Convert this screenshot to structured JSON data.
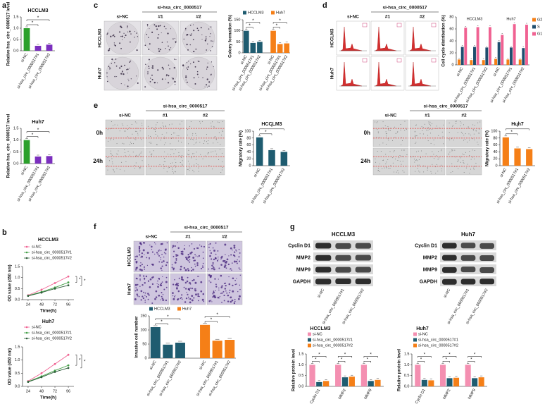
{
  "panel_letters": [
    "a",
    "b",
    "c",
    "d",
    "e",
    "f",
    "g"
  ],
  "image_panels": {
    "c": {
      "group": "si-hsa_circ_0000517",
      "columns": [
        "si-NC",
        "#1",
        "#2"
      ],
      "rows": [
        "HCCLM3",
        "Huh7"
      ]
    },
    "d": {
      "group": "si-hsa_circ_0000517",
      "columns": [
        "si-NC",
        "#1",
        "#2"
      ],
      "rows": [
        "HCCLM3",
        "Huh7"
      ]
    },
    "e1": {
      "group": "si-hsa_circ_0000517",
      "columns": [
        "si-NC",
        "#1",
        "#2"
      ],
      "rows": [
        "0h",
        "24h"
      ]
    },
    "e2": {
      "group": "si-hsa_circ_0000517",
      "columns": [
        "si-NC",
        "#1",
        "#2"
      ],
      "rows": [
        "0h",
        "24h"
      ]
    },
    "f": {
      "group": "si-hsa_circ_0000517",
      "columns": [
        "si-NC",
        "#1",
        "#2"
      ],
      "rows": [
        "HCCLM3",
        "Huh7"
      ]
    }
  },
  "blots": [
    {
      "title": "HCCLM3",
      "proteins": [
        "Cyclin D1",
        "MMP2",
        "MMP9",
        "GAPDH"
      ],
      "lanes": [
        "si-NC",
        "si-hsa_circ_0000517#1",
        "si-hsa_circ_0000517#2"
      ]
    },
    {
      "title": "Huh7",
      "proteins": [
        "Cyclin D1",
        "MMP2",
        "MMP9",
        "GAPDH"
      ],
      "lanes": [
        "si-NC",
        "si-hsa_circ_0000517#1",
        "si-hsa_circ_0000517#2"
      ]
    }
  ],
  "chart_data": [
    {
      "type": "bar",
      "title": "HCCLM3",
      "ylabel": "Relative hsa_circ_0000517 level",
      "categories": [
        "si-NC",
        "si-hsa_circ_0000517#1",
        "si-hsa_circ_0000517#2"
      ],
      "values": [
        1.0,
        0.22,
        0.27
      ],
      "colors": [
        "#2ca02c",
        "#7b2fbe",
        "#7b2fbe"
      ],
      "ylim": [
        0,
        1.5
      ],
      "yticks": [
        {
          "value": 0,
          "label": "0.0"
        },
        {
          "value": 0.5,
          "label": "0.5"
        },
        {
          "value": 1,
          "label": "1.0"
        },
        {
          "value": 1.5,
          "label": "1.5"
        }
      ],
      "sig_label": "*"
    },
    {
      "type": "bar",
      "title": "Huh7",
      "ylabel": "Relative hsa_circ_0000517 level",
      "categories": [
        "si-NC",
        "si-hsa_circ_0000517#1",
        "si-hsa_circ_0000517#2"
      ],
      "values": [
        1.0,
        0.3,
        0.32
      ],
      "colors": [
        "#2ca02c",
        "#7b2fbe",
        "#7b2fbe"
      ],
      "ylim": [
        0,
        1.5
      ],
      "yticks": [
        {
          "value": 0,
          "label": "0.0"
        },
        {
          "value": 0.5,
          "label": "0.5"
        },
        {
          "value": 1,
          "label": "1.0"
        },
        {
          "value": 1.5,
          "label": "1.5"
        }
      ],
      "sig_label": "*"
    },
    {
      "type": "line",
      "title": "HCCLM3",
      "xlabel": "Time(h)",
      "ylabel": "OD value (450 nm)",
      "x": [
        24,
        48,
        72,
        96
      ],
      "xlim": [
        14,
        106
      ],
      "xticks": [
        24,
        48,
        72,
        96
      ],
      "ylim": [
        0,
        1.5
      ],
      "yticks": [
        {
          "value": 0,
          "label": "0.0"
        },
        {
          "value": 0.5,
          "label": "0.5"
        },
        {
          "value": 1,
          "label": "1.0"
        },
        {
          "value": 1.5,
          "label": "1.5"
        }
      ],
      "legend": "top-left",
      "sig_label": "*",
      "series": [
        {
          "name": "si-NC",
          "color": "#f06292",
          "values": [
            0.2,
            0.45,
            0.75,
            1.05
          ]
        },
        {
          "name": "si-hsa_circ_0000517#1",
          "color": "#43a047",
          "values": [
            0.18,
            0.35,
            0.55,
            0.78
          ]
        },
        {
          "name": "si-hsa_circ_0000517#2",
          "color": "#2e5d3a",
          "values": [
            0.17,
            0.32,
            0.5,
            0.65
          ]
        }
      ]
    },
    {
      "type": "line",
      "title": "Huh7",
      "xlabel": "Time(h)",
      "ylabel": "OD value (450 nm)",
      "x": [
        24,
        48,
        72,
        96
      ],
      "xlim": [
        14,
        106
      ],
      "xticks": [
        24,
        48,
        72,
        96
      ],
      "ylim": [
        0,
        1.5
      ],
      "yticks": [
        {
          "value": 0,
          "label": "0.0"
        },
        {
          "value": 0.5,
          "label": "0.5"
        },
        {
          "value": 1,
          "label": "1.0"
        },
        {
          "value": 1.5,
          "label": "1.5"
        }
      ],
      "legend": "top-left",
      "sig_label": "*",
      "series": [
        {
          "name": "si-NC",
          "color": "#f06292",
          "values": [
            0.2,
            0.5,
            0.85,
            1.2
          ]
        },
        {
          "name": "si-hsa_circ_0000517#1",
          "color": "#43a047",
          "values": [
            0.18,
            0.38,
            0.6,
            0.8
          ]
        },
        {
          "name": "si-hsa_circ_0000517#2",
          "color": "#2e5d3a",
          "values": [
            0.17,
            0.35,
            0.55,
            0.7
          ]
        }
      ]
    },
    {
      "type": "bar",
      "bar_layout": "sequential",
      "ylabel": "Colony formation (%)",
      "categories": [
        "si-NC",
        "si-hsa_circ_0000517#1",
        "si-hsa_circ_0000517#2"
      ],
      "ylim": [
        0,
        150
      ],
      "yticks": [
        0,
        50,
        100,
        150
      ],
      "legend": "top",
      "sig_label": "*",
      "series": [
        {
          "name": "HCCLM3",
          "color": "#1f5c70",
          "values": [
            100,
            45,
            50
          ]
        },
        {
          "name": "Huh7",
          "color": "#f57f17",
          "values": [
            100,
            40,
            43
          ]
        }
      ]
    },
    {
      "type": "bar",
      "bar_layout": "clustered",
      "ylabel": "Cell cycle distribution (%)",
      "categories": [
        "si-NC",
        "si-hsa_circ_0000517#1",
        "si-hsa_circ_0000517#2",
        "si-NC",
        "si-hsa_circ_0000517#1",
        "si-hsa_circ_0000517#2"
      ],
      "group_labels": [
        "HCCLM3",
        "Huh7"
      ],
      "ylim": [
        0,
        80
      ],
      "yticks": [
        0,
        20,
        40,
        60,
        80
      ],
      "legend": "right",
      "series": [
        {
          "name": "G2",
          "color": "#f57f17",
          "values": [
            9,
            8,
            8,
            10,
            9,
            9
          ]
        },
        {
          "name": "S",
          "color": "#1f4e6e",
          "values": [
            30,
            30,
            29,
            38,
            29,
            28
          ]
        },
        {
          "name": "G1",
          "color": "#f06292",
          "values": [
            62,
            63,
            63,
            50,
            68,
            67
          ]
        }
      ]
    },
    {
      "type": "bar",
      "title": "HCCLM3",
      "ylabel": "Migratory rate (%)",
      "categories": [
        "si-NC",
        "si-hsa_circ_0000517#1",
        "si-hsa_circ_0000517#2"
      ],
      "values": [
        82,
        45,
        40
      ],
      "color": "#1f5c70",
      "ylim": [
        0,
        100
      ],
      "yticks": [
        0,
        20,
        40,
        60,
        80,
        100
      ],
      "sig_label": "*"
    },
    {
      "type": "bar",
      "title": "Huh7",
      "ylabel": "Migratory rate (%)",
      "categories": [
        "si-NC",
        "si-hsa_circ_0000517#1",
        "si-hsa_circ_0000517#2"
      ],
      "values": [
        82,
        50,
        48
      ],
      "color": "#f57f17",
      "ylim": [
        0,
        100
      ],
      "yticks": [
        0,
        20,
        40,
        60,
        80,
        100
      ],
      "sig_label": "*"
    },
    {
      "type": "bar",
      "bar_layout": "sequential",
      "ylabel": "Invasive cell number",
      "categories": [
        "si-NC",
        "si-hsa_circ_0000517#1",
        "si-hsa_circ_0000517#2"
      ],
      "ylim": [
        0,
        150
      ],
      "yticks": [
        0,
        50,
        100,
        150
      ],
      "legend": "top",
      "sig_label": "*",
      "series": [
        {
          "name": "HCCLM3",
          "color": "#1f5c70",
          "values": [
            110,
            48,
            55
          ]
        },
        {
          "name": "Huh7",
          "color": "#f57f17",
          "values": [
            118,
            62,
            65
          ]
        }
      ]
    },
    {
      "type": "bar",
      "bar_layout": "clustered",
      "title": "HCCLM3",
      "ylabel": "Relative protein level",
      "categories": [
        "Cyclin D1",
        "MMP2",
        "MMP9"
      ],
      "ylim": [
        0,
        1.5
      ],
      "yticks": [
        {
          "value": 0,
          "label": "0.0"
        },
        {
          "value": 0.5,
          "label": "0.5"
        },
        {
          "value": 1,
          "label": "1.0"
        },
        {
          "value": 1.5,
          "label": "1.5"
        }
      ],
      "legend": "top-left",
      "sig_label": "*",
      "series": [
        {
          "name": "si-NC",
          "color": "#f48fb1",
          "values": [
            1.0,
            1.0,
            1.0
          ]
        },
        {
          "name": "si-hsa_circ_0000517#1",
          "color": "#1f5c70",
          "values": [
            0.2,
            0.42,
            0.25
          ]
        },
        {
          "name": "si-hsa_circ_0000517#2",
          "color": "#f57f17",
          "values": [
            0.25,
            0.45,
            0.3
          ]
        }
      ]
    },
    {
      "type": "bar",
      "bar_layout": "clustered",
      "title": "Huh7",
      "ylabel": "Relative protein level",
      "categories": [
        "Cyclin D1",
        "MMP2",
        "MMP9"
      ],
      "ylim": [
        0,
        1.5
      ],
      "yticks": [
        {
          "value": 0,
          "label": "0.0"
        },
        {
          "value": 0.5,
          "label": "0.5"
        },
        {
          "value": 1,
          "label": "1.0"
        },
        {
          "value": 1.5,
          "label": "1.5"
        }
      ],
      "legend": "top-left",
      "sig_label": "*",
      "series": [
        {
          "name": "si-NC",
          "color": "#f48fb1",
          "values": [
            1.0,
            1.0,
            1.0
          ]
        },
        {
          "name": "si-hsa_circ_0000517#1",
          "color": "#1f5c70",
          "values": [
            0.3,
            0.38,
            0.38
          ]
        },
        {
          "name": "si-hsa_circ_0000517#2",
          "color": "#f57f17",
          "values": [
            0.28,
            0.4,
            0.42
          ]
        }
      ]
    }
  ]
}
